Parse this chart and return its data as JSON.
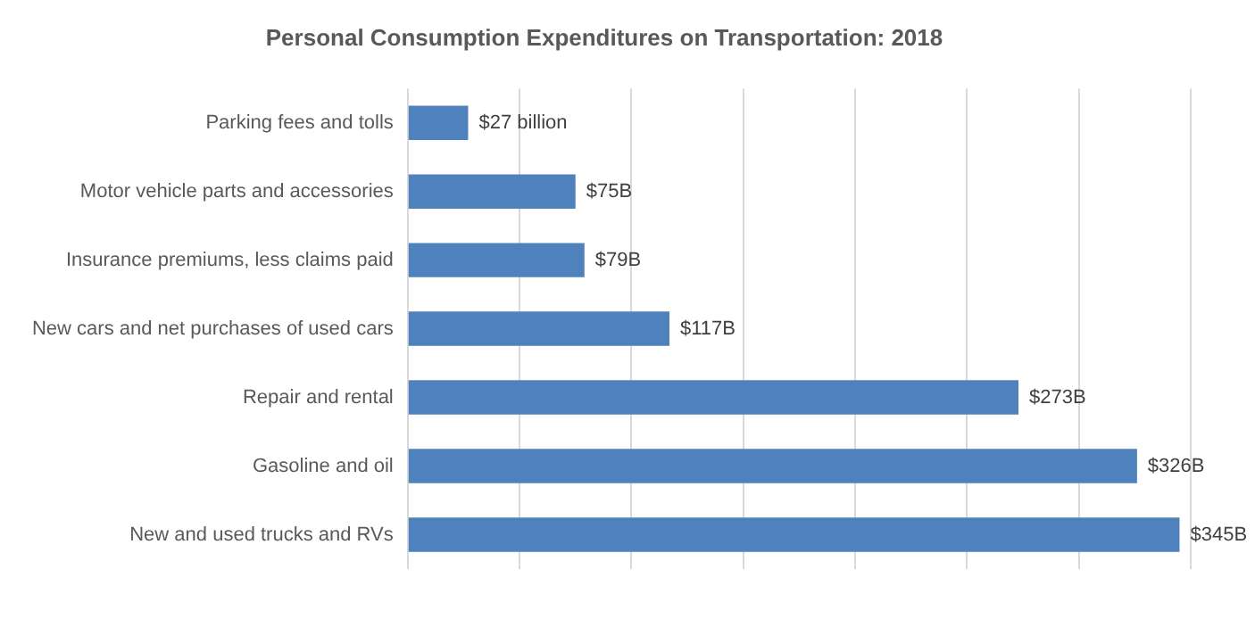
{
  "chart_data": {
    "type": "bar",
    "orientation": "horizontal",
    "title": "Personal Consumption Expenditures on Transportation: 2018",
    "categories": [
      "Parking fees and tolls",
      "Motor vehicle parts and accessories",
      "Insurance premiums, less claims paid",
      "New cars and net purchases of used cars",
      "Repair and rental",
      "Gasoline and oil",
      "New and used trucks and RVs"
    ],
    "values": [
      27,
      75,
      79,
      117,
      273,
      326,
      345
    ],
    "value_labels": [
      "$27 billion",
      "$75B",
      "$79B",
      "$117B",
      "$273B",
      "$326B",
      "$345B"
    ],
    "color": "#4f81bd",
    "xlim": [
      0,
      350
    ],
    "xticks": [
      {
        "value": 0,
        "label": null
      },
      {
        "value": 50,
        "label": null
      },
      {
        "value": 100,
        "label": null
      },
      {
        "value": 150,
        "label": null
      },
      {
        "value": 200,
        "label": null
      },
      {
        "value": 250,
        "label": null
      },
      {
        "value": 300,
        "label": null
      },
      {
        "value": 350,
        "label": null
      }
    ],
    "grid": "x",
    "tick_labels": "y",
    "legend": false
  }
}
